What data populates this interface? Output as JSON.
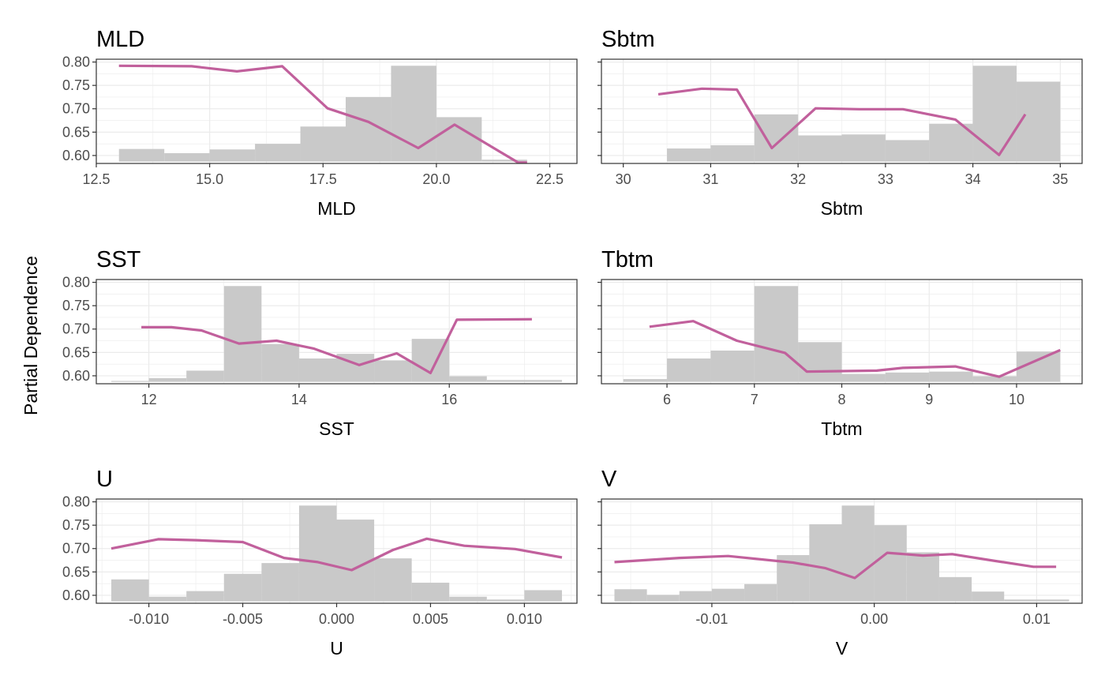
{
  "figure": {
    "ylabel": "Partial Dependence",
    "colors": {
      "line": "#C1609C",
      "hist": "#C9C9C9",
      "grid": "#EBEBEB",
      "frame": "#333333"
    }
  },
  "chart_data": [
    {
      "type": "line",
      "title": "MLD",
      "xlabel": "MLD",
      "xlim": [
        12.5,
        23.1
      ],
      "ylim": [
        0.583,
        0.806
      ],
      "xticks": [
        12.5,
        15.0,
        17.5,
        20.0,
        22.5
      ],
      "xtick_labels": [
        "12.5",
        "15.0",
        "17.5",
        "20.0",
        "22.5"
      ],
      "yticks": [
        0.6,
        0.65,
        0.7,
        0.75,
        0.8
      ],
      "ytick_labels": [
        "0.60",
        "0.65",
        "0.70",
        "0.75",
        "0.80"
      ],
      "grid": true,
      "hist": [
        {
          "x0": 13.0,
          "x1": 14.0,
          "y": 0.614
        },
        {
          "x0": 14.0,
          "x1": 15.0,
          "y": 0.605
        },
        {
          "x0": 15.0,
          "x1": 16.0,
          "y": 0.613
        },
        {
          "x0": 16.0,
          "x1": 17.0,
          "y": 0.625
        },
        {
          "x0": 17.0,
          "x1": 18.0,
          "y": 0.662
        },
        {
          "x0": 18.0,
          "x1": 19.0,
          "y": 0.725
        },
        {
          "x0": 19.0,
          "x1": 20.0,
          "y": 0.792
        },
        {
          "x0": 20.0,
          "x1": 21.0,
          "y": 0.682
        },
        {
          "x0": 21.0,
          "x1": 22.0,
          "y": 0.591
        },
        {
          "x0": 22.0,
          "x1": 23.0,
          "y": 0.587
        }
      ],
      "x": [
        13.0,
        14.6,
        15.6,
        16.6,
        17.6,
        18.5,
        19.6,
        20.4,
        21.8,
        22.0
      ],
      "y": [
        0.792,
        0.791,
        0.78,
        0.791,
        0.701,
        0.672,
        0.616,
        0.666,
        0.585,
        0.585
      ]
    },
    {
      "type": "line",
      "title": "Sbtm",
      "xlabel": "Sbtm",
      "xlim": [
        29.75,
        35.25
      ],
      "ylim": [
        0.583,
        0.806
      ],
      "xticks": [
        30,
        31,
        32,
        33,
        34,
        35
      ],
      "xtick_labels": [
        "30",
        "31",
        "32",
        "33",
        "34",
        "35"
      ],
      "yticks": [
        0.6,
        0.65,
        0.7,
        0.75,
        0.8
      ],
      "ytick_labels": [
        "",
        "",
        "",
        "",
        ""
      ],
      "grid": true,
      "hist": [
        {
          "x0": 30.0,
          "x1": 30.5,
          "y": 0.587
        },
        {
          "x0": 30.5,
          "x1": 31.0,
          "y": 0.615
        },
        {
          "x0": 31.0,
          "x1": 31.5,
          "y": 0.622
        },
        {
          "x0": 31.5,
          "x1": 32.0,
          "y": 0.688
        },
        {
          "x0": 32.0,
          "x1": 32.5,
          "y": 0.643
        },
        {
          "x0": 32.5,
          "x1": 33.0,
          "y": 0.645
        },
        {
          "x0": 33.0,
          "x1": 33.5,
          "y": 0.633
        },
        {
          "x0": 33.5,
          "x1": 34.0,
          "y": 0.668
        },
        {
          "x0": 34.0,
          "x1": 34.5,
          "y": 0.792
        },
        {
          "x0": 34.5,
          "x1": 35.0,
          "y": 0.758
        }
      ],
      "x": [
        30.4,
        30.9,
        31.3,
        31.7,
        32.2,
        32.7,
        33.2,
        33.8,
        34.3,
        34.6
      ],
      "y": [
        0.731,
        0.743,
        0.741,
        0.616,
        0.701,
        0.699,
        0.699,
        0.677,
        0.601,
        0.688
      ]
    },
    {
      "type": "line",
      "title": "SST",
      "xlabel": "SST",
      "xlim": [
        11.3,
        17.7
      ],
      "ylim": [
        0.583,
        0.806
      ],
      "xticks": [
        12,
        14,
        16
      ],
      "xtick_labels": [
        "12",
        "14",
        "16"
      ],
      "yticks": [
        0.6,
        0.65,
        0.7,
        0.75,
        0.8
      ],
      "ytick_labels": [
        "0.60",
        "0.65",
        "0.70",
        "0.75",
        "0.80"
      ],
      "grid": true,
      "hist": [
        {
          "x0": 11.5,
          "x1": 12.0,
          "y": 0.589
        },
        {
          "x0": 12.0,
          "x1": 12.5,
          "y": 0.595
        },
        {
          "x0": 12.5,
          "x1": 13.0,
          "y": 0.611
        },
        {
          "x0": 13.0,
          "x1": 13.5,
          "y": 0.792
        },
        {
          "x0": 13.5,
          "x1": 14.0,
          "y": 0.668
        },
        {
          "x0": 14.0,
          "x1": 14.5,
          "y": 0.637
        },
        {
          "x0": 14.5,
          "x1": 15.0,
          "y": 0.647
        },
        {
          "x0": 15.0,
          "x1": 15.5,
          "y": 0.633
        },
        {
          "x0": 15.5,
          "x1": 16.0,
          "y": 0.679
        },
        {
          "x0": 16.0,
          "x1": 16.5,
          "y": 0.599
        },
        {
          "x0": 16.5,
          "x1": 17.5,
          "y": 0.591
        }
      ],
      "x": [
        11.9,
        12.3,
        12.7,
        13.2,
        13.7,
        14.2,
        14.8,
        15.3,
        15.75,
        16.1,
        17.1
      ],
      "y": [
        0.704,
        0.704,
        0.697,
        0.669,
        0.675,
        0.658,
        0.623,
        0.648,
        0.606,
        0.72,
        0.721
      ]
    },
    {
      "type": "line",
      "title": "Tbtm",
      "xlabel": "Tbtm",
      "xlim": [
        5.25,
        10.75
      ],
      "ylim": [
        0.583,
        0.806
      ],
      "xticks": [
        6,
        7,
        8,
        9,
        10
      ],
      "xtick_labels": [
        "6",
        "7",
        "8",
        "9",
        "10"
      ],
      "yticks": [
        0.6,
        0.65,
        0.7,
        0.75,
        0.8
      ],
      "ytick_labels": [
        "",
        "",
        "",
        "",
        ""
      ],
      "grid": true,
      "hist": [
        {
          "x0": 5.5,
          "x1": 6.0,
          "y": 0.593
        },
        {
          "x0": 6.0,
          "x1": 6.5,
          "y": 0.637
        },
        {
          "x0": 6.5,
          "x1": 7.0,
          "y": 0.654
        },
        {
          "x0": 7.0,
          "x1": 7.5,
          "y": 0.792
        },
        {
          "x0": 7.5,
          "x1": 8.0,
          "y": 0.672
        },
        {
          "x0": 8.0,
          "x1": 8.5,
          "y": 0.604
        },
        {
          "x0": 8.5,
          "x1": 9.0,
          "y": 0.607
        },
        {
          "x0": 9.0,
          "x1": 9.5,
          "y": 0.609
        },
        {
          "x0": 9.5,
          "x1": 10.0,
          "y": 0.599
        },
        {
          "x0": 10.0,
          "x1": 10.5,
          "y": 0.652
        }
      ],
      "x": [
        5.8,
        6.3,
        6.8,
        7.35,
        7.6,
        8.4,
        8.7,
        9.3,
        9.8,
        10.5
      ],
      "y": [
        0.705,
        0.717,
        0.675,
        0.649,
        0.609,
        0.611,
        0.617,
        0.62,
        0.598,
        0.655
      ]
    },
    {
      "type": "line",
      "title": "U",
      "xlabel": "U",
      "xlim": [
        -0.0128,
        0.0128
      ],
      "ylim": [
        0.583,
        0.806
      ],
      "xticks": [
        -0.01,
        -0.005,
        0.0,
        0.005,
        0.01
      ],
      "xtick_labels": [
        "-0.010",
        "-0.005",
        "0.000",
        "0.005",
        "0.010"
      ],
      "yticks": [
        0.6,
        0.65,
        0.7,
        0.75,
        0.8
      ],
      "ytick_labels": [
        "0.60",
        "0.65",
        "0.70",
        "0.75",
        "0.80"
      ],
      "grid": true,
      "hist": [
        {
          "x0": -0.012,
          "x1": -0.01,
          "y": 0.634
        },
        {
          "x0": -0.01,
          "x1": -0.008,
          "y": 0.597
        },
        {
          "x0": -0.008,
          "x1": -0.006,
          "y": 0.609
        },
        {
          "x0": -0.006,
          "x1": -0.004,
          "y": 0.646
        },
        {
          "x0": -0.004,
          "x1": -0.002,
          "y": 0.669
        },
        {
          "x0": -0.002,
          "x1": 0.0,
          "y": 0.792
        },
        {
          "x0": 0.0,
          "x1": 0.002,
          "y": 0.762
        },
        {
          "x0": 0.002,
          "x1": 0.004,
          "y": 0.679
        },
        {
          "x0": 0.004,
          "x1": 0.006,
          "y": 0.627
        },
        {
          "x0": 0.006,
          "x1": 0.008,
          "y": 0.597
        },
        {
          "x0": 0.008,
          "x1": 0.01,
          "y": 0.591
        },
        {
          "x0": 0.01,
          "x1": 0.012,
          "y": 0.611
        }
      ],
      "x": [
        -0.012,
        -0.0095,
        -0.0075,
        -0.005,
        -0.0028,
        -0.001,
        0.0008,
        0.003,
        0.0048,
        0.0068,
        0.0095,
        0.012
      ],
      "y": [
        0.7,
        0.72,
        0.718,
        0.714,
        0.68,
        0.671,
        0.654,
        0.697,
        0.721,
        0.706,
        0.699,
        0.681
      ]
    },
    {
      "type": "line",
      "title": "V",
      "xlabel": "V",
      "xlim": [
        -0.0168,
        0.0128
      ],
      "ylim": [
        0.583,
        0.806
      ],
      "xticks": [
        -0.01,
        0.0,
        0.01
      ],
      "xtick_labels": [
        "-0.01",
        "0.00",
        "0.01"
      ],
      "yticks": [
        0.6,
        0.65,
        0.7,
        0.75,
        0.8
      ],
      "ytick_labels": [
        "",
        "",
        "",
        "",
        ""
      ],
      "grid": true,
      "hist": [
        {
          "x0": -0.016,
          "x1": -0.014,
          "y": 0.613
        },
        {
          "x0": -0.014,
          "x1": -0.012,
          "y": 0.601
        },
        {
          "x0": -0.012,
          "x1": -0.01,
          "y": 0.609
        },
        {
          "x0": -0.01,
          "x1": -0.008,
          "y": 0.614
        },
        {
          "x0": -0.008,
          "x1": -0.006,
          "y": 0.624
        },
        {
          "x0": -0.006,
          "x1": -0.004,
          "y": 0.686
        },
        {
          "x0": -0.004,
          "x1": -0.002,
          "y": 0.752
        },
        {
          "x0": -0.002,
          "x1": 0.0,
          "y": 0.792
        },
        {
          "x0": 0.0,
          "x1": 0.002,
          "y": 0.75
        },
        {
          "x0": 0.002,
          "x1": 0.004,
          "y": 0.692
        },
        {
          "x0": 0.004,
          "x1": 0.006,
          "y": 0.639
        },
        {
          "x0": 0.006,
          "x1": 0.008,
          "y": 0.608
        },
        {
          "x0": 0.008,
          "x1": 0.012,
          "y": 0.591
        }
      ],
      "x": [
        -0.016,
        -0.012,
        -0.009,
        -0.005,
        -0.003,
        -0.0012,
        0.0008,
        0.003,
        0.0048,
        0.007,
        0.0098,
        0.0112
      ],
      "y": [
        0.671,
        0.68,
        0.684,
        0.67,
        0.658,
        0.637,
        0.691,
        0.685,
        0.688,
        0.676,
        0.661,
        0.661
      ]
    }
  ]
}
